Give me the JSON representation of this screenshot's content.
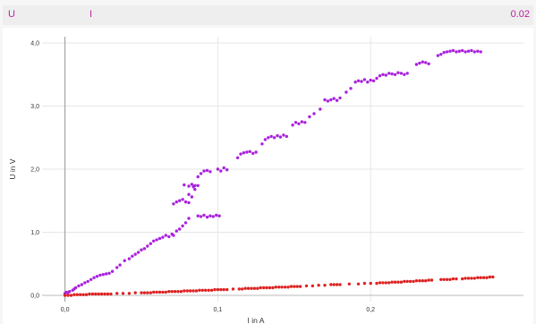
{
  "header": {
    "label_u": "U",
    "label_i": "I",
    "value": "0.02",
    "accent": "#c0209a"
  },
  "chart_data": {
    "type": "scatter",
    "xlabel": "I in A",
    "ylabel": "U in V",
    "xlim": [
      -0.015,
      0.3
    ],
    "ylim": [
      -0.1,
      4.1
    ],
    "x_ticks": [
      0.0,
      0.1,
      0.2
    ],
    "x_tick_labels": [
      "0,0",
      "0,1",
      "0,2"
    ],
    "y_ticks": [
      0.0,
      1.0,
      2.0,
      3.0,
      4.0
    ],
    "y_tick_labels": [
      "0,0",
      "1,0",
      "2,0",
      "3,0",
      "4,0"
    ],
    "grid": true,
    "series": [
      {
        "color": "#aa22dd",
        "x": [
          0.0,
          0.001,
          0.002,
          0.003,
          0.005,
          0.006,
          0.007,
          0.009,
          0.011,
          0.013,
          0.015,
          0.017,
          0.019,
          0.021,
          0.023,
          0.025,
          0.027,
          0.029,
          0.031,
          0.034,
          0.036,
          0.039,
          0.042,
          0.044,
          0.046,
          0.048,
          0.05,
          0.052,
          0.054,
          0.056,
          0.058,
          0.06,
          0.062,
          0.064,
          0.066,
          0.068,
          0.07,
          0.071,
          0.073,
          0.075,
          0.077,
          0.079,
          0.081,
          0.071,
          0.073,
          0.075,
          0.077,
          0.079,
          0.081,
          0.083,
          0.085,
          0.087,
          0.078,
          0.081,
          0.083,
          0.085,
          0.087,
          0.089,
          0.091,
          0.093,
          0.095,
          0.097,
          0.099,
          0.101,
          0.081,
          0.084,
          0.087,
          0.089,
          0.091,
          0.093,
          0.095,
          0.1,
          0.102,
          0.104,
          0.106,
          0.113,
          0.115,
          0.117,
          0.119,
          0.121,
          0.123,
          0.125,
          0.129,
          0.131,
          0.133,
          0.135,
          0.137,
          0.139,
          0.141,
          0.143,
          0.145,
          0.149,
          0.151,
          0.153,
          0.155,
          0.157,
          0.16,
          0.163,
          0.167,
          0.17,
          0.172,
          0.174,
          0.176,
          0.178,
          0.18,
          0.184,
          0.187,
          0.19,
          0.192,
          0.194,
          0.196,
          0.198,
          0.2,
          0.202,
          0.204,
          0.206,
          0.208,
          0.21,
          0.212,
          0.214,
          0.216,
          0.218,
          0.22,
          0.222,
          0.224,
          0.23,
          0.232,
          0.234,
          0.236,
          0.238,
          0.244,
          0.246,
          0.248,
          0.25,
          0.252,
          0.254,
          0.256,
          0.258,
          0.26,
          0.262,
          0.264,
          0.266,
          0.268,
          0.27,
          0.272
        ],
        "y": [
          0.03,
          0.05,
          0.04,
          0.06,
          0.08,
          0.1,
          0.12,
          0.15,
          0.17,
          0.2,
          0.22,
          0.25,
          0.28,
          0.3,
          0.32,
          0.33,
          0.34,
          0.35,
          0.38,
          0.44,
          0.48,
          0.55,
          0.58,
          0.62,
          0.65,
          0.68,
          0.72,
          0.74,
          0.78,
          0.82,
          0.86,
          0.88,
          0.9,
          0.92,
          0.95,
          0.93,
          0.97,
          0.95,
          1.02,
          1.05,
          1.1,
          1.15,
          1.22,
          1.45,
          1.48,
          1.5,
          1.52,
          1.48,
          1.47,
          1.56,
          1.68,
          1.74,
          1.75,
          1.73,
          1.76,
          1.74,
          1.26,
          1.25,
          1.27,
          1.24,
          1.26,
          1.25,
          1.27,
          1.26,
          1.6,
          1.72,
          1.88,
          1.93,
          1.97,
          1.98,
          1.96,
          2.0,
          1.97,
          2.02,
          1.99,
          2.18,
          2.24,
          2.26,
          2.27,
          2.28,
          2.25,
          2.27,
          2.4,
          2.47,
          2.5,
          2.52,
          2.5,
          2.53,
          2.51,
          2.54,
          2.52,
          2.7,
          2.74,
          2.72,
          2.75,
          2.74,
          2.83,
          2.88,
          2.95,
          3.1,
          3.08,
          3.1,
          3.12,
          3.09,
          3.13,
          3.22,
          3.28,
          3.38,
          3.4,
          3.39,
          3.42,
          3.38,
          3.41,
          3.4,
          3.44,
          3.48,
          3.5,
          3.49,
          3.52,
          3.51,
          3.5,
          3.53,
          3.52,
          3.5,
          3.52,
          3.66,
          3.68,
          3.7,
          3.69,
          3.67,
          3.8,
          3.82,
          3.85,
          3.86,
          3.87,
          3.88,
          3.86,
          3.87,
          3.88,
          3.86,
          3.87,
          3.88,
          3.86,
          3.87,
          3.86
        ]
      },
      {
        "color": "#dd2222",
        "x": [
          0.0,
          0.002,
          0.004,
          0.006,
          0.008,
          0.01,
          0.012,
          0.014,
          0.016,
          0.018,
          0.02,
          0.022,
          0.024,
          0.026,
          0.028,
          0.03,
          0.034,
          0.038,
          0.042,
          0.046,
          0.05,
          0.052,
          0.054,
          0.056,
          0.058,
          0.06,
          0.062,
          0.064,
          0.066,
          0.068,
          0.07,
          0.072,
          0.074,
          0.076,
          0.078,
          0.08,
          0.082,
          0.084,
          0.086,
          0.088,
          0.09,
          0.092,
          0.094,
          0.096,
          0.098,
          0.1,
          0.102,
          0.104,
          0.106,
          0.11,
          0.114,
          0.116,
          0.118,
          0.12,
          0.122,
          0.124,
          0.126,
          0.128,
          0.13,
          0.132,
          0.134,
          0.136,
          0.138,
          0.14,
          0.142,
          0.144,
          0.146,
          0.148,
          0.15,
          0.152,
          0.154,
          0.158,
          0.162,
          0.166,
          0.17,
          0.174,
          0.176,
          0.178,
          0.18,
          0.186,
          0.192,
          0.196,
          0.2,
          0.204,
          0.206,
          0.208,
          0.21,
          0.212,
          0.214,
          0.216,
          0.218,
          0.22,
          0.222,
          0.224,
          0.226,
          0.228,
          0.23,
          0.232,
          0.234,
          0.236,
          0.238,
          0.24,
          0.246,
          0.248,
          0.25,
          0.252,
          0.254,
          0.256,
          0.26,
          0.262,
          0.264,
          0.266,
          0.268,
          0.27,
          0.272,
          0.274,
          0.276,
          0.278,
          0.28
        ],
        "y": [
          0.0,
          0.0,
          0.0,
          0.01,
          0.01,
          0.01,
          0.01,
          0.01,
          0.02,
          0.02,
          0.02,
          0.02,
          0.02,
          0.02,
          0.02,
          0.02,
          0.03,
          0.03,
          0.03,
          0.04,
          0.04,
          0.04,
          0.04,
          0.04,
          0.05,
          0.05,
          0.05,
          0.05,
          0.05,
          0.06,
          0.06,
          0.06,
          0.06,
          0.06,
          0.07,
          0.07,
          0.07,
          0.07,
          0.07,
          0.08,
          0.08,
          0.08,
          0.08,
          0.08,
          0.09,
          0.09,
          0.09,
          0.09,
          0.09,
          0.1,
          0.1,
          0.1,
          0.11,
          0.11,
          0.11,
          0.11,
          0.11,
          0.12,
          0.12,
          0.12,
          0.12,
          0.12,
          0.13,
          0.13,
          0.13,
          0.13,
          0.13,
          0.14,
          0.14,
          0.14,
          0.14,
          0.15,
          0.15,
          0.16,
          0.16,
          0.17,
          0.17,
          0.17,
          0.17,
          0.18,
          0.18,
          0.19,
          0.19,
          0.19,
          0.2,
          0.2,
          0.2,
          0.2,
          0.21,
          0.21,
          0.21,
          0.21,
          0.22,
          0.22,
          0.22,
          0.22,
          0.23,
          0.23,
          0.23,
          0.23,
          0.24,
          0.24,
          0.25,
          0.25,
          0.25,
          0.25,
          0.26,
          0.26,
          0.26,
          0.27,
          0.27,
          0.27,
          0.27,
          0.28,
          0.28,
          0.28,
          0.28,
          0.29,
          0.29
        ]
      }
    ]
  }
}
